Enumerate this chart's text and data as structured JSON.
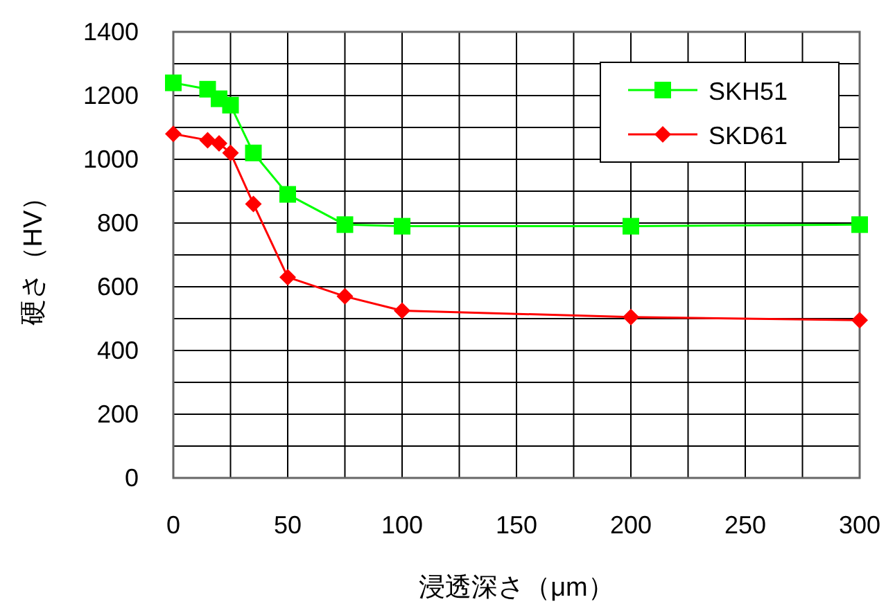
{
  "chart_data": {
    "type": "line",
    "xlabel": "浸透深さ（μm）",
    "ylabel": "硬さ（HV）",
    "x": [
      0,
      15,
      20,
      25,
      35,
      50,
      75,
      100,
      200,
      300
    ],
    "series": [
      {
        "name": "SKH51",
        "color": "#00ff00",
        "marker": "square",
        "values": [
          1240,
          1220,
          1190,
          1170,
          1020,
          890,
          795,
          790,
          790,
          795
        ]
      },
      {
        "name": "SKD61",
        "color": "#ff0000",
        "marker": "diamond",
        "values": [
          1080,
          1060,
          1050,
          1020,
          860,
          630,
          570,
          525,
          505,
          495
        ]
      }
    ],
    "xlim": [
      0,
      300
    ],
    "ylim": [
      0,
      1400
    ],
    "xticks": [
      0,
      {
        "value": 25,
        "label": null
      },
      50,
      {
        "value": 75,
        "label": null
      },
      100,
      {
        "value": 125,
        "label": null
      },
      150,
      {
        "value": 175,
        "label": null
      },
      200,
      {
        "value": 225,
        "label": null
      },
      250,
      {
        "value": 275,
        "label": null
      },
      300
    ],
    "yticks": [
      0,
      {
        "value": 100,
        "label": null
      },
      200,
      {
        "value": 300,
        "label": null
      },
      400,
      {
        "value": 500,
        "label": null
      },
      600,
      {
        "value": 700,
        "label": null
      },
      800,
      {
        "value": 900,
        "label": null
      },
      1000,
      {
        "value": 1100,
        "label": null
      },
      1200,
      {
        "value": 1300,
        "label": null
      },
      1400
    ],
    "grid": true,
    "legend": "top right",
    "line_style": "solid"
  }
}
